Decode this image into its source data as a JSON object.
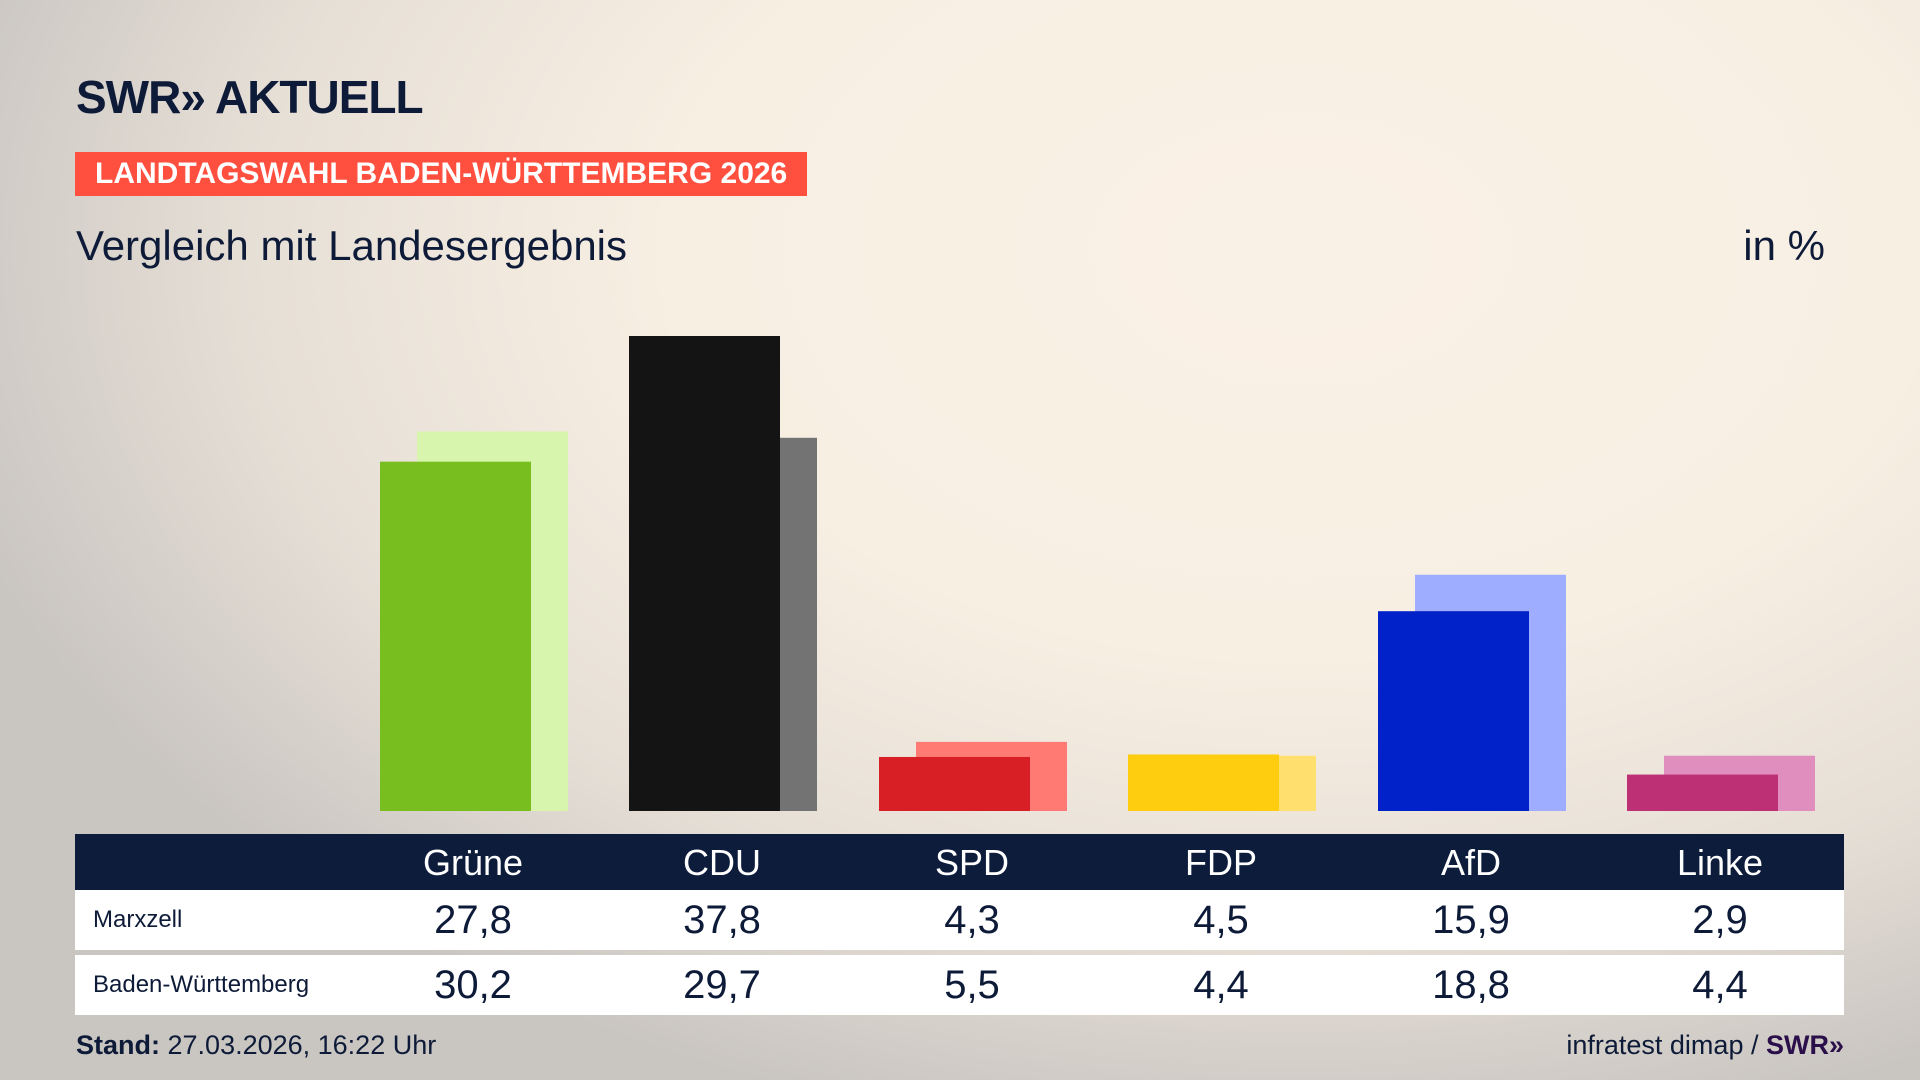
{
  "header": {
    "logo": "SWR» AKTUELL",
    "banner": "LANDTAGSWAHL BADEN-WÜRTTEMBERG 2026",
    "subtitle": "Vergleich mit Landesergebnis",
    "unit": "in %"
  },
  "chart_data": {
    "type": "bar",
    "categories": [
      "Grüne",
      "CDU",
      "SPD",
      "FDP",
      "AfD",
      "Linke"
    ],
    "series": [
      {
        "name": "Marxzell",
        "values": [
          27.8,
          37.8,
          4.3,
          4.5,
          15.9,
          2.9
        ],
        "labels": [
          "27,8",
          "37,8",
          "4,3",
          "4,5",
          "15,9",
          "2,9"
        ]
      },
      {
        "name": "Baden-Württemberg",
        "values": [
          30.2,
          29.7,
          5.5,
          4.4,
          18.8,
          4.4
        ],
        "labels": [
          "30,2",
          "29,7",
          "5,5",
          "4,4",
          "18,8",
          "4,4"
        ]
      }
    ],
    "colors": {
      "front": [
        "#78be1e",
        "#141414",
        "#d91f26",
        "#ffcd0f",
        "#0022c8",
        "#be3075"
      ],
      "back": [
        "#d8f5ad",
        "#737373",
        "#ff7a73",
        "#ffe06f",
        "#9eadff",
        "#e08ebd"
      ]
    },
    "ylim": [
      0,
      37.8
    ],
    "grid": false,
    "legend": "table-below"
  },
  "footer": {
    "stand_label": "Stand:",
    "stand_value": "27.03.2026, 16:22 Uhr",
    "source": "infratest dimap /",
    "source_logo": "SWR»"
  }
}
